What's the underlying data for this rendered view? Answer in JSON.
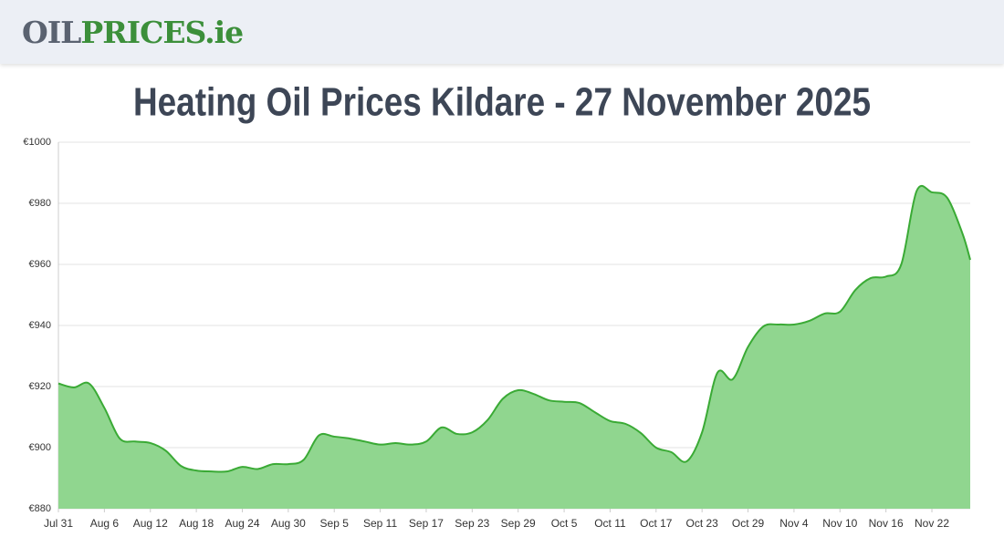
{
  "header": {
    "logo_part1": "OIL",
    "logo_part2": "PRICES.ie"
  },
  "chart_data": {
    "type": "area",
    "title": "Heating Oil Prices Kildare - 27 November 2025",
    "x": [
      0,
      2,
      4,
      6,
      8,
      10,
      12,
      14,
      16,
      18,
      20,
      22,
      24,
      26,
      28,
      30,
      32,
      34,
      36,
      38,
      40,
      42,
      44,
      46,
      48,
      50,
      52,
      54,
      56,
      58,
      60,
      62,
      64,
      66,
      68,
      70,
      72,
      74,
      76,
      78,
      80,
      82,
      84,
      86,
      88,
      90,
      92,
      94,
      96,
      98,
      100,
      102,
      104,
      106,
      108,
      110,
      112,
      114,
      116,
      118,
      119
    ],
    "series": [
      {
        "color": "#3aaa35",
        "fill": "#90d68f",
        "values": [
          921,
          919.7,
          921,
          913,
          903,
          902,
          901.5,
          899,
          894,
          892.5,
          892.2,
          892.2,
          893.7,
          893,
          894.6,
          894.6,
          896,
          904,
          903.6,
          903,
          902,
          901,
          901.5,
          901,
          902,
          906.6,
          904.5,
          905,
          909,
          916,
          918.8,
          917.6,
          915.5,
          915,
          914.6,
          911.6,
          908.7,
          907.8,
          904.8,
          900,
          898.5,
          895.5,
          905,
          924.5,
          922.4,
          933,
          939.7,
          940.3,
          940.3,
          941.5,
          943.9,
          944.5,
          951.6,
          955.5,
          956,
          960,
          984,
          983.6,
          981.8,
          970,
          961.5
        ]
      }
    ],
    "xlim": [
      0,
      119
    ],
    "xticks": [
      {
        "value": 0,
        "label": "Jul 31"
      },
      {
        "value": 6,
        "label": "Aug 6"
      },
      {
        "value": 12,
        "label": "Aug 12"
      },
      {
        "value": 18,
        "label": "Aug 18"
      },
      {
        "value": 24,
        "label": "Aug 24"
      },
      {
        "value": 30,
        "label": "Aug 30"
      },
      {
        "value": 36,
        "label": "Sep 5"
      },
      {
        "value": 42,
        "label": "Sep 11"
      },
      {
        "value": 48,
        "label": "Sep 17"
      },
      {
        "value": 54,
        "label": "Sep 23"
      },
      {
        "value": 60,
        "label": "Sep 29"
      },
      {
        "value": 66,
        "label": "Oct 5"
      },
      {
        "value": 72,
        "label": "Oct 11"
      },
      {
        "value": 78,
        "label": "Oct 17"
      },
      {
        "value": 84,
        "label": "Oct 23"
      },
      {
        "value": 90,
        "label": "Oct 29"
      },
      {
        "value": 96,
        "label": "Nov 4"
      },
      {
        "value": 102,
        "label": "Nov 10"
      },
      {
        "value": 108,
        "label": "Nov 16"
      },
      {
        "value": 114,
        "label": "Nov 22"
      }
    ],
    "ylim": [
      880,
      1000
    ],
    "yticks": [
      {
        "value": 880,
        "label": "€880"
      },
      {
        "value": 900,
        "label": "€900"
      },
      {
        "value": 920,
        "label": "€920"
      },
      {
        "value": 940,
        "label": "€940"
      },
      {
        "value": 960,
        "label": "€960"
      },
      {
        "value": 980,
        "label": "€980"
      },
      {
        "value": 1000,
        "label": "€1000"
      }
    ],
    "grid": true
  }
}
